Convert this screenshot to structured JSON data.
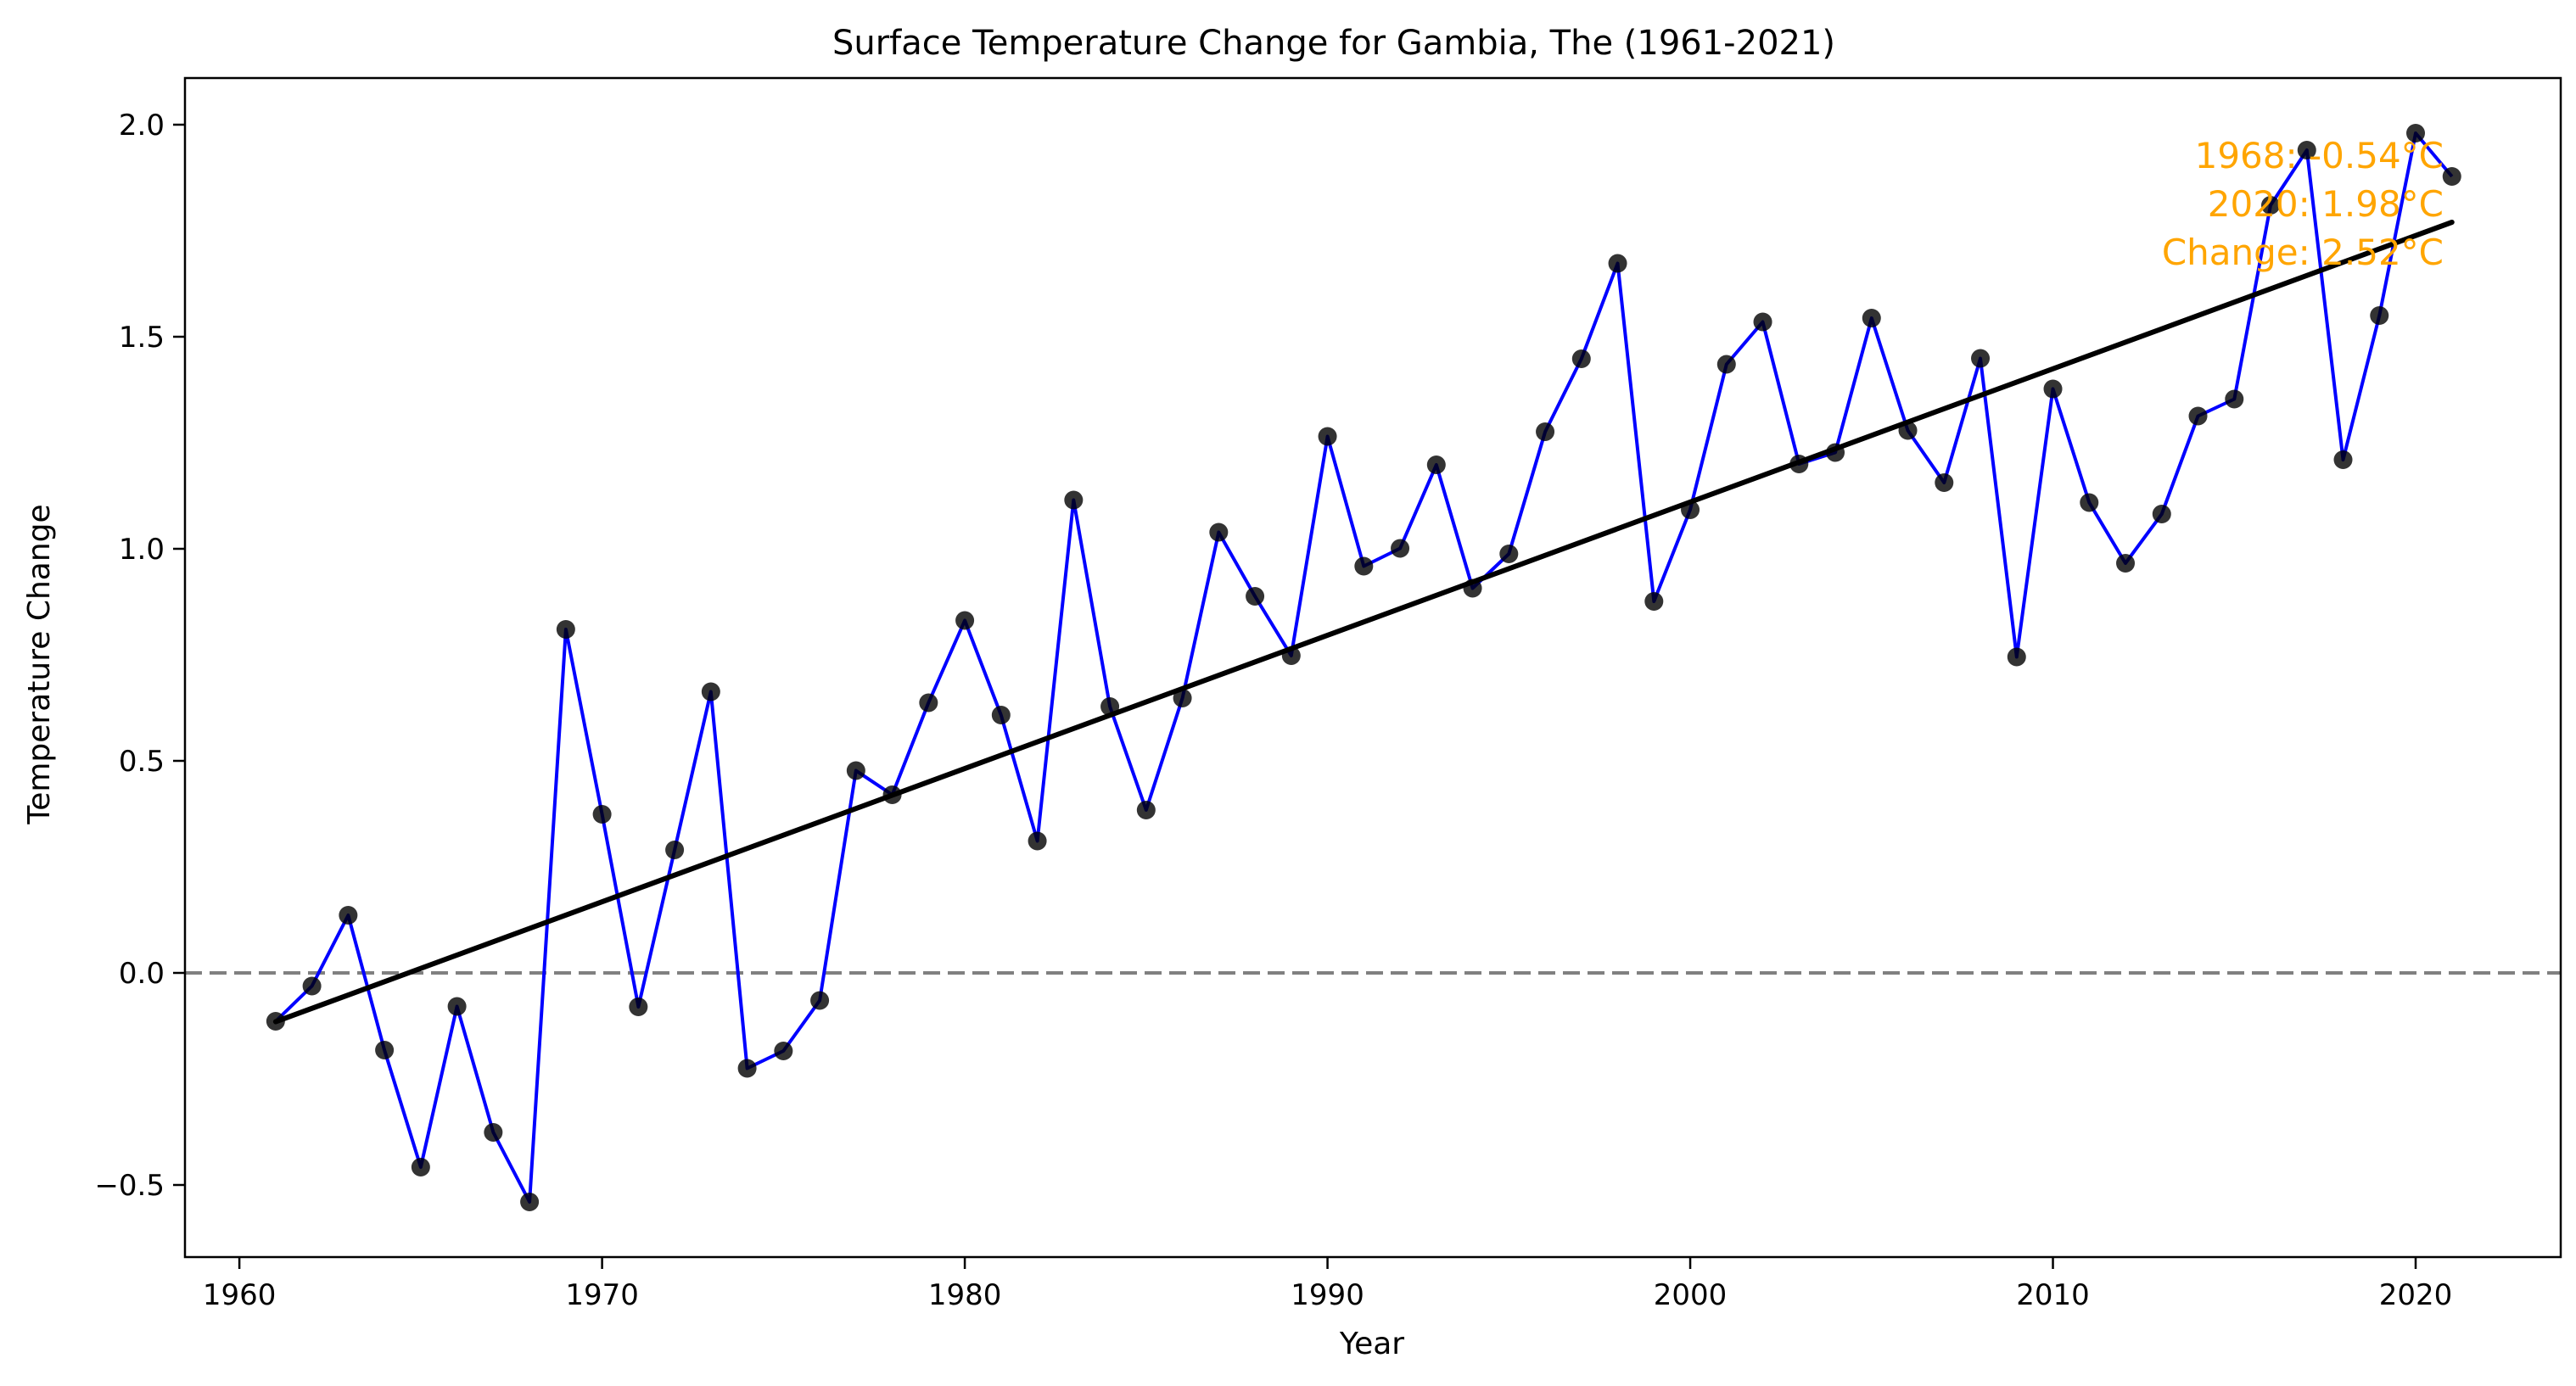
{
  "chart_data": {
    "type": "line",
    "title": "Surface Temperature Change for Gambia, The (1961-2021)",
    "xlabel": "Year",
    "ylabel": "Temperature Change",
    "xlim": [
      1958.5,
      2024
    ],
    "ylim": [
      -0.67,
      2.11
    ],
    "xticks": [
      1960,
      1970,
      1980,
      1990,
      2000,
      2010,
      2020
    ],
    "yticks": [
      -0.5,
      0.0,
      0.5,
      1.0,
      1.5,
      2.0
    ],
    "ytick_labels": [
      "−0.5",
      "0.0",
      "0.5",
      "1.0",
      "1.5",
      "2.0"
    ],
    "grid": false,
    "reference_line": {
      "y": 0.0,
      "style": "dashed",
      "color": "#808080"
    },
    "series": [
      {
        "color": "#0000ff",
        "marker_color": "#000000",
        "x": [
          1961,
          1962,
          1963,
          1964,
          1965,
          1966,
          1967,
          1968,
          1969,
          1970,
          1971,
          1972,
          1973,
          1974,
          1975,
          1976,
          1977,
          1978,
          1979,
          1980,
          1981,
          1982,
          1983,
          1984,
          1985,
          1986,
          1987,
          1988,
          1989,
          1990,
          1991,
          1992,
          1993,
          1994,
          1995,
          1996,
          1997,
          1998,
          1999,
          2000,
          2001,
          2002,
          2003,
          2004,
          2005,
          2006,
          2007,
          2008,
          2009,
          2010,
          2011,
          2012,
          2013,
          2014,
          2015,
          2016,
          2017,
          2018,
          2019,
          2020,
          2021
        ],
        "y": [
          -0.114,
          -0.031,
          0.136,
          -0.182,
          -0.458,
          -0.079,
          -0.376,
          -0.54,
          0.81,
          0.374,
          -0.08,
          0.29,
          0.663,
          -0.225,
          -0.184,
          -0.065,
          0.477,
          0.42,
          0.637,
          0.831,
          0.608,
          0.311,
          1.115,
          0.628,
          0.384,
          0.648,
          1.039,
          0.888,
          0.748,
          1.265,
          0.959,
          1.001,
          1.198,
          0.907,
          0.988,
          1.276,
          1.448,
          1.673,
          0.876,
          1.092,
          1.435,
          1.535,
          1.2,
          1.227,
          1.544,
          1.279,
          1.156,
          1.449,
          0.745,
          1.377,
          1.109,
          0.966,
          1.082,
          1.313,
          1.353,
          1.81,
          1.94,
          1.21,
          1.55,
          1.98,
          1.878
        ]
      }
    ],
    "trend_line": {
      "color": "#000000",
      "x": [
        1961,
        2021
      ],
      "y": [
        -0.115,
        1.77
      ]
    },
    "annotation": {
      "color": "#ffa500",
      "lines": [
        "1968: -0.54°C",
        "2020: 1.98°C",
        "Change: 2.52°C"
      ]
    }
  }
}
